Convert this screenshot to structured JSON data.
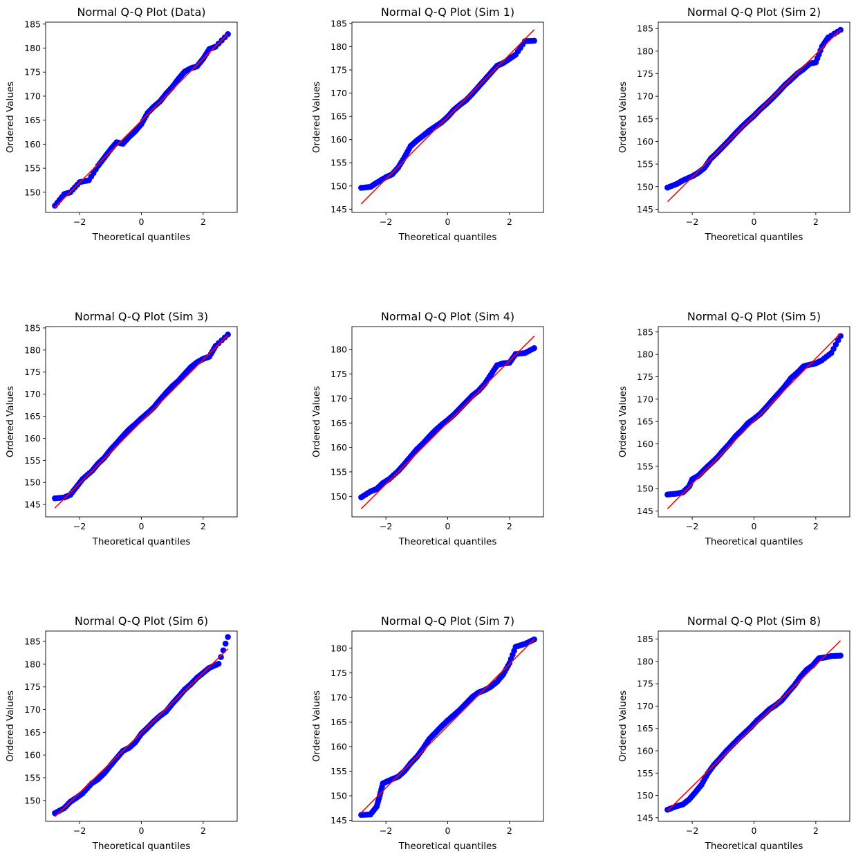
{
  "chart_data": [
    {
      "type": "scatter",
      "title": "Normal Q-Q Plot (Data)",
      "xlabel": "Theoretical quantiles",
      "ylabel": "Ordered Values",
      "xlim": [
        -3.1,
        3.1
      ],
      "ylim": [
        145.8,
        185.4
      ],
      "xticks": [
        -2,
        0,
        2
      ],
      "xtick_labels": [
        "−2",
        "0",
        "2"
      ],
      "yticks": [
        145,
        150,
        155,
        160,
        165,
        170,
        175,
        180,
        185
      ],
      "grid": false,
      "fit_line": {
        "slope": 6.45,
        "intercept": 164.9
      },
      "x": [
        -2.8,
        -2.5,
        -2.3,
        -2.0,
        -1.7,
        -1.4,
        -1.2,
        -1.0,
        -0.8,
        -0.6,
        -0.4,
        -0.2,
        0.0,
        0.2,
        0.4,
        0.6,
        0.8,
        1.0,
        1.2,
        1.4,
        1.6,
        1.8,
        2.0,
        2.2,
        2.4,
        2.8
      ],
      "y": [
        147.2,
        149.6,
        150.0,
        152.1,
        152.5,
        155.5,
        157.2,
        158.9,
        160.4,
        160.1,
        161.5,
        162.7,
        164.2,
        166.5,
        167.8,
        168.9,
        170.5,
        171.9,
        173.6,
        175.1,
        175.8,
        176.2,
        177.8,
        179.8,
        180.3,
        182.9
      ],
      "line_color": "#ff0000",
      "point_color": "#0000ff"
    },
    {
      "type": "scatter",
      "title": "Normal Q-Q Plot (Sim 1)",
      "xlabel": "Theoretical quantiles",
      "ylabel": "Ordered Values",
      "xlim": [
        -3.1,
        3.1
      ],
      "ylim": [
        144.3,
        185.3
      ],
      "xticks": [
        -2,
        0,
        2
      ],
      "xtick_labels": [
        "−2",
        "0",
        "2"
      ],
      "yticks": [
        145,
        150,
        155,
        160,
        165,
        170,
        175,
        180,
        185
      ],
      "grid": false,
      "fit_line": {
        "slope": 6.7,
        "intercept": 164.9
      },
      "x": [
        -2.8,
        -2.5,
        -2.3,
        -2.0,
        -1.8,
        -1.6,
        -1.4,
        -1.2,
        -1.0,
        -0.8,
        -0.6,
        -0.4,
        -0.2,
        0.0,
        0.2,
        0.4,
        0.6,
        0.8,
        1.0,
        1.2,
        1.4,
        1.6,
        1.8,
        2.0,
        2.2,
        2.5,
        2.8
      ],
      "y": [
        149.6,
        149.8,
        150.7,
        151.9,
        152.5,
        154.0,
        156.2,
        158.6,
        159.8,
        160.8,
        161.9,
        162.8,
        163.7,
        164.9,
        166.4,
        167.5,
        168.5,
        169.9,
        171.4,
        172.9,
        174.4,
        175.9,
        176.5,
        177.4,
        178.3,
        181.2,
        181.3
      ],
      "line_color": "#ff0000",
      "point_color": "#0000ff"
    },
    {
      "type": "scatter",
      "title": "Normal Q-Q Plot (Sim 2)",
      "xlabel": "Theoretical quantiles",
      "ylabel": "Ordered Values",
      "xlim": [
        -3.1,
        3.1
      ],
      "ylim": [
        144.3,
        186.4
      ],
      "xticks": [
        -2,
        0,
        2
      ],
      "xtick_labels": [
        "−2",
        "0",
        "2"
      ],
      "yticks": [
        145,
        150,
        155,
        160,
        165,
        170,
        175,
        180,
        185
      ],
      "grid": false,
      "fit_line": {
        "slope": 6.8,
        "intercept": 165.7
      },
      "x": [
        -2.8,
        -2.5,
        -2.3,
        -2.0,
        -1.8,
        -1.6,
        -1.4,
        -1.2,
        -1.0,
        -0.8,
        -0.6,
        -0.4,
        -0.2,
        0.0,
        0.2,
        0.4,
        0.6,
        0.8,
        1.0,
        1.2,
        1.4,
        1.6,
        1.8,
        2.0,
        2.2,
        2.4,
        2.8
      ],
      "y": [
        149.8,
        150.6,
        151.4,
        152.3,
        153.1,
        154.2,
        156.2,
        157.5,
        158.9,
        160.3,
        161.8,
        163.2,
        164.5,
        165.7,
        167.1,
        168.3,
        169.6,
        171.0,
        172.5,
        173.7,
        175.0,
        176.0,
        177.2,
        177.5,
        181.0,
        183.0,
        184.7
      ],
      "line_color": "#ff0000",
      "point_color": "#0000ff"
    },
    {
      "type": "scatter",
      "title": "Normal Q-Q Plot (Sim 3)",
      "xlabel": "Theoretical quantiles",
      "ylabel": "Ordered Values",
      "xlim": [
        -3.1,
        3.1
      ],
      "ylim": [
        142.2,
        185.3
      ],
      "xticks": [
        -2,
        0,
        2
      ],
      "xtick_labels": [
        "−2",
        "0",
        "2"
      ],
      "yticks": [
        145,
        150,
        155,
        160,
        165,
        170,
        175,
        180,
        185
      ],
      "grid": false,
      "fit_line": {
        "slope": 7.0,
        "intercept": 163.8
      },
      "x": [
        -2.8,
        -2.5,
        -2.3,
        -2.1,
        -1.9,
        -1.6,
        -1.4,
        -1.2,
        -1.0,
        -0.8,
        -0.6,
        -0.4,
        -0.2,
        0.0,
        0.2,
        0.4,
        0.6,
        0.8,
        1.0,
        1.2,
        1.4,
        1.6,
        1.8,
        2.0,
        2.2,
        2.4,
        2.8
      ],
      "y": [
        146.4,
        146.6,
        147.2,
        149.0,
        150.8,
        152.6,
        154.3,
        155.6,
        157.4,
        158.9,
        160.5,
        162.0,
        163.2,
        164.5,
        165.7,
        167.0,
        168.7,
        170.3,
        171.8,
        173.0,
        174.6,
        176.1,
        177.2,
        178.0,
        178.5,
        180.9,
        183.5
      ],
      "line_color": "#ff0000",
      "point_color": "#0000ff"
    },
    {
      "type": "scatter",
      "title": "Normal Q-Q Plot (Sim 4)",
      "xlabel": "Theoretical quantiles",
      "ylabel": "Ordered Values",
      "xlim": [
        -3.1,
        3.1
      ],
      "ylim": [
        145.8,
        184.7
      ],
      "xticks": [
        -2,
        0,
        2
      ],
      "xtick_labels": [
        "−2",
        "0",
        "2"
      ],
      "yticks": [
        150,
        155,
        160,
        165,
        170,
        175,
        180
      ],
      "grid": false,
      "fit_line": {
        "slope": 6.3,
        "intercept": 165.1
      },
      "x": [
        -2.8,
        -2.5,
        -2.3,
        -2.1,
        -1.9,
        -1.6,
        -1.4,
        -1.2,
        -1.0,
        -0.8,
        -0.6,
        -0.4,
        -0.2,
        0.0,
        0.2,
        0.4,
        0.6,
        0.8,
        1.0,
        1.2,
        1.4,
        1.6,
        1.8,
        2.0,
        2.2,
        2.5,
        2.8
      ],
      "y": [
        149.8,
        151.0,
        151.5,
        152.7,
        153.5,
        155.2,
        156.6,
        158.1,
        159.6,
        160.8,
        162.2,
        163.5,
        164.6,
        165.6,
        166.7,
        168.0,
        169.3,
        170.6,
        171.6,
        173.0,
        174.9,
        176.8,
        177.2,
        177.3,
        179.1,
        179.3,
        180.3
      ],
      "line_color": "#ff0000",
      "point_color": "#0000ff"
    },
    {
      "type": "scatter",
      "title": "Normal Q-Q Plot (Sim 5)",
      "xlabel": "Theoretical quantiles",
      "ylabel": "Ordered Values",
      "xlim": [
        -3.1,
        3.1
      ],
      "ylim": [
        143.7,
        186.2
      ],
      "xticks": [
        -2,
        0,
        2
      ],
      "xtick_labels": [
        "−2",
        "0",
        "2"
      ],
      "yticks": [
        145,
        150,
        155,
        160,
        165,
        170,
        175,
        180,
        185
      ],
      "grid": false,
      "fit_line": {
        "slope": 7.0,
        "intercept": 165.1
      },
      "x": [
        -2.8,
        -2.5,
        -2.3,
        -2.1,
        -2.0,
        -1.8,
        -1.6,
        -1.4,
        -1.2,
        -1.0,
        -0.8,
        -0.6,
        -0.4,
        -0.2,
        0.0,
        0.2,
        0.4,
        0.6,
        0.8,
        1.0,
        1.2,
        1.4,
        1.6,
        1.8,
        2.0,
        2.2,
        2.5,
        2.8
      ],
      "y": [
        148.7,
        148.9,
        149.2,
        150.5,
        152.1,
        152.9,
        154.3,
        155.6,
        156.9,
        158.5,
        160.0,
        161.7,
        163.0,
        164.6,
        165.6,
        166.7,
        168.2,
        169.8,
        171.3,
        172.9,
        174.7,
        175.9,
        177.3,
        177.7,
        178.0,
        178.7,
        180.3,
        184.1
      ],
      "line_color": "#ff0000",
      "point_color": "#0000ff"
    },
    {
      "type": "scatter",
      "title": "Normal Q-Q Plot (Sim 6)",
      "xlabel": "Theoretical quantiles",
      "ylabel": "Ordered Values",
      "xlim": [
        -3.1,
        3.1
      ],
      "ylim": [
        145.4,
        187.3
      ],
      "xticks": [
        -2,
        0,
        2
      ],
      "xtick_labels": [
        "−2",
        "0",
        "2"
      ],
      "yticks": [
        145,
        150,
        155,
        160,
        165,
        170,
        175,
        180,
        185
      ],
      "grid": false,
      "fit_line": {
        "slope": 6.6,
        "intercept": 164.9
      },
      "x": [
        -2.8,
        -2.5,
        -2.3,
        -2.1,
        -1.9,
        -1.6,
        -1.4,
        -1.2,
        -1.0,
        -0.8,
        -0.6,
        -0.4,
        -0.2,
        0.0,
        0.2,
        0.4,
        0.6,
        0.8,
        1.0,
        1.2,
        1.4,
        1.6,
        1.8,
        2.0,
        2.2,
        2.5,
        2.8
      ],
      "y": [
        147.2,
        148.3,
        149.7,
        150.6,
        151.6,
        153.8,
        154.7,
        156.0,
        157.7,
        159.3,
        160.9,
        161.6,
        162.8,
        164.7,
        166.0,
        167.4,
        168.6,
        169.6,
        171.3,
        172.8,
        174.4,
        175.6,
        177.0,
        178.1,
        179.2,
        180.1,
        186.0
      ],
      "line_color": "#ff0000",
      "point_color": "#0000ff"
    },
    {
      "type": "scatter",
      "title": "Normal Q-Q Plot (Sim 7)",
      "xlabel": "Theoretical quantiles",
      "ylabel": "Ordered Values",
      "xlim": [
        -3.1,
        3.1
      ],
      "ylim": [
        144.8,
        183.5
      ],
      "xticks": [
        -2,
        0,
        2
      ],
      "xtick_labels": [
        "−2",
        "0",
        "2"
      ],
      "yticks": [
        145,
        150,
        155,
        160,
        165,
        170,
        175,
        180
      ],
      "grid": false,
      "fit_line": {
        "slope": 6.3,
        "intercept": 164.2
      },
      "x": [
        -2.8,
        -2.5,
        -2.3,
        -2.2,
        -2.1,
        -1.9,
        -1.6,
        -1.4,
        -1.2,
        -1.0,
        -0.8,
        -0.6,
        -0.4,
        -0.2,
        0.0,
        0.2,
        0.4,
        0.6,
        0.8,
        1.0,
        1.2,
        1.4,
        1.6,
        1.8,
        2.0,
        2.2,
        2.5,
        2.8
      ],
      "y": [
        146.1,
        146.2,
        147.8,
        150.0,
        152.5,
        153.1,
        153.9,
        155.0,
        156.6,
        157.9,
        159.6,
        161.5,
        162.8,
        164.1,
        165.3,
        166.4,
        167.5,
        168.8,
        170.1,
        171.0,
        171.5,
        172.2,
        173.2,
        174.7,
        177.0,
        180.3,
        180.9,
        181.8
      ],
      "line_color": "#ff0000",
      "point_color": "#0000ff"
    },
    {
      "type": "scatter",
      "title": "Normal Q-Q Plot (Sim 8)",
      "xlabel": "Theoretical quantiles",
      "ylabel": "Ordered Values",
      "xlim": [
        -3.1,
        3.1
      ],
      "ylim": [
        144.2,
        186.8
      ],
      "xticks": [
        -2,
        0,
        2
      ],
      "xtick_labels": [
        "−2",
        "0",
        "2"
      ],
      "yticks": [
        145,
        150,
        155,
        160,
        165,
        170,
        175,
        180,
        185
      ],
      "grid": false,
      "fit_line": {
        "slope": 6.8,
        "intercept": 165.6
      },
      "x": [
        -2.8,
        -2.5,
        -2.3,
        -2.1,
        -1.9,
        -1.7,
        -1.5,
        -1.3,
        -1.1,
        -0.9,
        -0.7,
        -0.5,
        -0.3,
        -0.1,
        0.1,
        0.3,
        0.5,
        0.7,
        0.9,
        1.1,
        1.3,
        1.5,
        1.7,
        1.9,
        2.1,
        2.3,
        2.5,
        2.8
      ],
      "y": [
        146.8,
        147.6,
        148.0,
        149.1,
        150.7,
        152.4,
        154.9,
        156.8,
        158.3,
        159.9,
        161.3,
        162.7,
        164.0,
        165.3,
        166.8,
        168.0,
        169.3,
        170.2,
        171.3,
        173.0,
        174.6,
        176.5,
        178.1,
        179.1,
        180.7,
        180.9,
        181.2,
        181.3
      ],
      "line_color": "#ff0000",
      "point_color": "#0000ff"
    }
  ]
}
